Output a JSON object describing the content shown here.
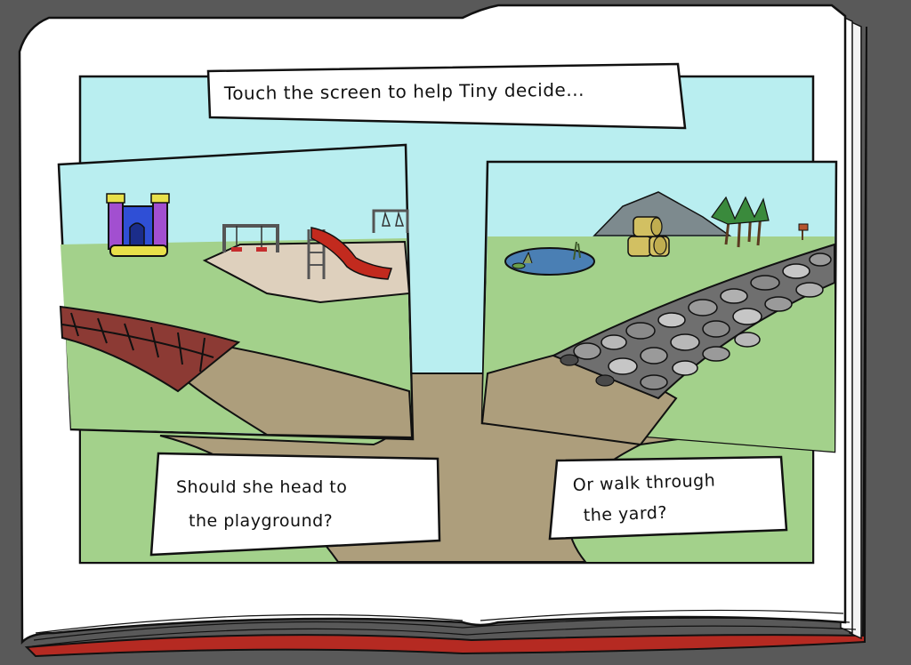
{
  "prompt": {
    "text": "Touch the screen to help Tiny decide..."
  },
  "left_choice": {
    "caption_line1": "Should she head to",
    "caption_line2": "the playground?"
  },
  "right_choice": {
    "caption_line1": "Or walk through",
    "caption_line2": "the yard?"
  },
  "colors": {
    "sky": "#b9eef0",
    "grass": "#a3d18b",
    "path": "#ad9e7c",
    "page": "#ffffff",
    "book_edge": "#b52a22"
  }
}
